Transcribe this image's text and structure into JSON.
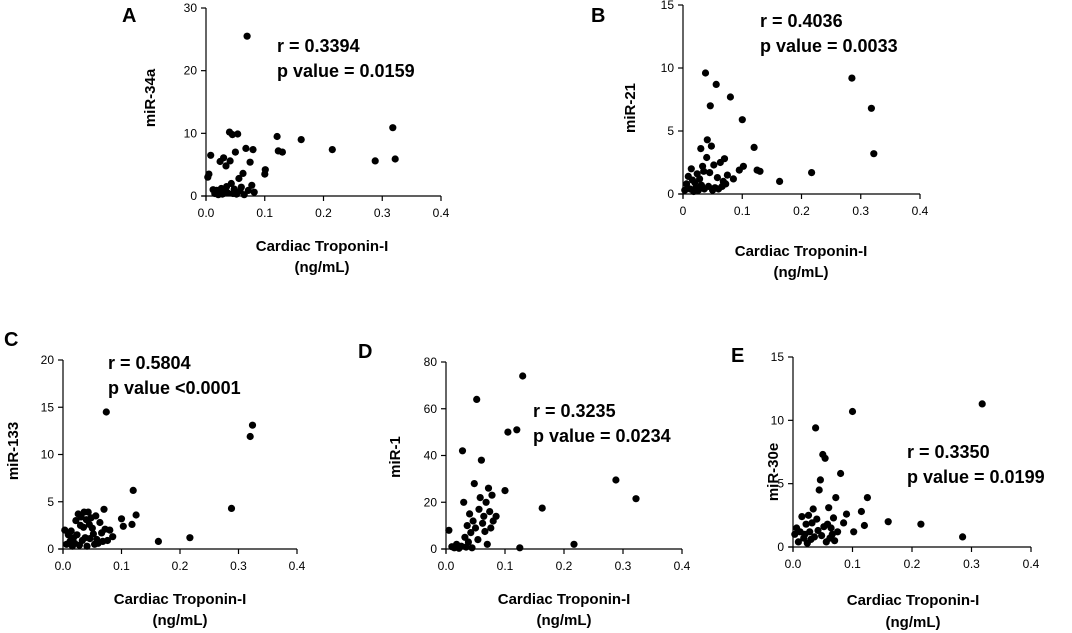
{
  "figure": {
    "background": "#ffffff",
    "point_color": "#000000"
  },
  "chart_data": [
    {
      "panel": "A",
      "type": "scatter",
      "xlabel": [
        "Cardiac Troponin-I",
        "(ng/mL)"
      ],
      "ylabel": "miR-34a",
      "xlim": [
        0,
        0.4
      ],
      "ylim": [
        0,
        30
      ],
      "xticks": [
        "0.0",
        "0.1",
        "0.2",
        "0.3",
        "0.4"
      ],
      "yticks": [
        "0",
        "10",
        "20",
        "30"
      ],
      "annotation": [
        "r = 0.3394",
        "p value = 0.0159"
      ],
      "points": [
        [
          0.003,
          3.0
        ],
        [
          0.005,
          3.5
        ],
        [
          0.008,
          6.5
        ],
        [
          0.012,
          1.0
        ],
        [
          0.015,
          0.4
        ],
        [
          0.018,
          0.9
        ],
        [
          0.021,
          0.2
        ],
        [
          0.024,
          5.5
        ],
        [
          0.026,
          1.2
        ],
        [
          0.028,
          0.3
        ],
        [
          0.03,
          6.1
        ],
        [
          0.032,
          0.8
        ],
        [
          0.034,
          4.8
        ],
        [
          0.035,
          1.5
        ],
        [
          0.037,
          0.5
        ],
        [
          0.04,
          10.2
        ],
        [
          0.041,
          5.6
        ],
        [
          0.043,
          2.0
        ],
        [
          0.045,
          9.8
        ],
        [
          0.046,
          0.4
        ],
        [
          0.048,
          1.1
        ],
        [
          0.05,
          7.0
        ],
        [
          0.052,
          0.3
        ],
        [
          0.054,
          9.9
        ],
        [
          0.056,
          2.8
        ],
        [
          0.058,
          0.8
        ],
        [
          0.06,
          1.4
        ],
        [
          0.063,
          3.6
        ],
        [
          0.065,
          0.2
        ],
        [
          0.068,
          7.6
        ],
        [
          0.07,
          25.5
        ],
        [
          0.072,
          0.9
        ],
        [
          0.075,
          5.4
        ],
        [
          0.078,
          1.7
        ],
        [
          0.08,
          7.4
        ],
        [
          0.082,
          0.6
        ],
        [
          0.1,
          3.5
        ],
        [
          0.101,
          4.2
        ],
        [
          0.121,
          9.5
        ],
        [
          0.123,
          7.2
        ],
        [
          0.13,
          7.0
        ],
        [
          0.162,
          9.0
        ],
        [
          0.215,
          7.4
        ],
        [
          0.288,
          5.6
        ],
        [
          0.318,
          10.9
        ],
        [
          0.322,
          5.9
        ]
      ]
    },
    {
      "panel": "B",
      "type": "scatter",
      "xlabel": [
        "Cardiac Troponin-I",
        "(ng/mL)"
      ],
      "ylabel": "miR-21",
      "xlim": [
        0,
        0.4
      ],
      "ylim": [
        0,
        15
      ],
      "xticks": [
        "0",
        "0.1",
        "0.2",
        "0.3",
        "0.4"
      ],
      "yticks": [
        "0",
        "5",
        "10",
        "15"
      ],
      "annotation": [
        "r = 0.4036",
        "p value = 0.0033"
      ],
      "points": [
        [
          0.003,
          0.3
        ],
        [
          0.006,
          0.8
        ],
        [
          0.009,
          1.4
        ],
        [
          0.012,
          0.4
        ],
        [
          0.014,
          2.0
        ],
        [
          0.016,
          1.1
        ],
        [
          0.018,
          0.2
        ],
        [
          0.02,
          0.9
        ],
        [
          0.022,
          0.5
        ],
        [
          0.024,
          1.6
        ],
        [
          0.026,
          0.3
        ],
        [
          0.028,
          1.2
        ],
        [
          0.03,
          3.6
        ],
        [
          0.031,
          0.7
        ],
        [
          0.033,
          2.2
        ],
        [
          0.035,
          1.8
        ],
        [
          0.036,
          0.4
        ],
        [
          0.038,
          9.6
        ],
        [
          0.04,
          2.9
        ],
        [
          0.041,
          4.3
        ],
        [
          0.043,
          0.6
        ],
        [
          0.045,
          1.7
        ],
        [
          0.046,
          7.0
        ],
        [
          0.048,
          3.8
        ],
        [
          0.05,
          0.3
        ],
        [
          0.052,
          2.3
        ],
        [
          0.054,
          0.5
        ],
        [
          0.056,
          8.7
        ],
        [
          0.058,
          1.3
        ],
        [
          0.06,
          0.4
        ],
        [
          0.063,
          2.5
        ],
        [
          0.066,
          0.6
        ],
        [
          0.068,
          1.0
        ],
        [
          0.07,
          2.8
        ],
        [
          0.072,
          0.8
        ],
        [
          0.075,
          1.5
        ],
        [
          0.08,
          7.7
        ],
        [
          0.085,
          1.2
        ],
        [
          0.095,
          1.9
        ],
        [
          0.1,
          5.9
        ],
        [
          0.102,
          2.2
        ],
        [
          0.12,
          3.7
        ],
        [
          0.125,
          1.9
        ],
        [
          0.13,
          1.8
        ],
        [
          0.163,
          1.0
        ],
        [
          0.217,
          1.7
        ],
        [
          0.285,
          9.2
        ],
        [
          0.318,
          6.8
        ],
        [
          0.322,
          3.2
        ]
      ]
    },
    {
      "panel": "C",
      "type": "scatter",
      "xlabel": [
        "Cardiac Troponin-I",
        "(ng/mL)"
      ],
      "ylabel": "miR-133",
      "xlim": [
        0,
        0.4
      ],
      "ylim": [
        0,
        20
      ],
      "xticks": [
        "0.0",
        "0.1",
        "0.2",
        "0.3",
        "0.4"
      ],
      "yticks": [
        "0",
        "5",
        "10",
        "15",
        "20"
      ],
      "annotation": [
        "r = 0.5804",
        "p value <0.0001"
      ],
      "points": [
        [
          0.003,
          2.0
        ],
        [
          0.006,
          0.5
        ],
        [
          0.009,
          1.5
        ],
        [
          0.012,
          0.8
        ],
        [
          0.014,
          1.9
        ],
        [
          0.016,
          0.3
        ],
        [
          0.018,
          1.2
        ],
        [
          0.02,
          0.6
        ],
        [
          0.022,
          3.0
        ],
        [
          0.024,
          1.5
        ],
        [
          0.026,
          3.7
        ],
        [
          0.028,
          0.4
        ],
        [
          0.03,
          2.5
        ],
        [
          0.031,
          3.4
        ],
        [
          0.033,
          0.9
        ],
        [
          0.035,
          2.3
        ],
        [
          0.036,
          3.9
        ],
        [
          0.038,
          1.2
        ],
        [
          0.04,
          3.1
        ],
        [
          0.041,
          0.3
        ],
        [
          0.043,
          3.9
        ],
        [
          0.045,
          2.6
        ],
        [
          0.046,
          1.1
        ],
        [
          0.048,
          3.3
        ],
        [
          0.05,
          2.2
        ],
        [
          0.052,
          1.6
        ],
        [
          0.054,
          0.5
        ],
        [
          0.056,
          3.5
        ],
        [
          0.058,
          1.0
        ],
        [
          0.06,
          0.6
        ],
        [
          0.063,
          2.8
        ],
        [
          0.066,
          1.7
        ],
        [
          0.068,
          0.8
        ],
        [
          0.07,
          4.2
        ],
        [
          0.072,
          2.1
        ],
        [
          0.074,
          14.5
        ],
        [
          0.076,
          0.9
        ],
        [
          0.08,
          2.0
        ],
        [
          0.085,
          1.3
        ],
        [
          0.1,
          3.2
        ],
        [
          0.103,
          2.4
        ],
        [
          0.118,
          2.6
        ],
        [
          0.12,
          6.2
        ],
        [
          0.125,
          3.6
        ],
        [
          0.163,
          0.8
        ],
        [
          0.217,
          1.2
        ],
        [
          0.288,
          4.3
        ],
        [
          0.32,
          11.9
        ],
        [
          0.324,
          13.1
        ]
      ]
    },
    {
      "panel": "D",
      "type": "scatter",
      "xlabel": [
        "Cardiac Troponin-I",
        "(ng/mL)"
      ],
      "ylabel": "miR-1",
      "xlim": [
        0,
        0.4
      ],
      "ylim": [
        0,
        80
      ],
      "xticks": [
        "0.0",
        "0.1",
        "0.2",
        "0.3",
        "0.4"
      ],
      "yticks": [
        "0",
        "20",
        "40",
        "60",
        "80"
      ],
      "annotation": [
        "r = 0.3235",
        "p value = 0.0234"
      ],
      "points": [
        [
          0.005,
          8.0
        ],
        [
          0.01,
          1.0
        ],
        [
          0.014,
          0.5
        ],
        [
          0.018,
          2.0
        ],
        [
          0.022,
          0.3
        ],
        [
          0.026,
          1.2
        ],
        [
          0.028,
          42.0
        ],
        [
          0.03,
          20.0
        ],
        [
          0.032,
          5.0
        ],
        [
          0.034,
          0.8
        ],
        [
          0.036,
          10.0
        ],
        [
          0.038,
          3.0
        ],
        [
          0.04,
          15.0
        ],
        [
          0.042,
          7.0
        ],
        [
          0.044,
          0.5
        ],
        [
          0.046,
          12.0
        ],
        [
          0.048,
          28.0
        ],
        [
          0.05,
          9.0
        ],
        [
          0.052,
          64.0
        ],
        [
          0.054,
          4.0
        ],
        [
          0.056,
          17.0
        ],
        [
          0.058,
          22.0
        ],
        [
          0.06,
          38.0
        ],
        [
          0.062,
          11.0
        ],
        [
          0.064,
          14.0
        ],
        [
          0.066,
          7.5
        ],
        [
          0.068,
          20.0
        ],
        [
          0.07,
          2.0
        ],
        [
          0.072,
          26.0
        ],
        [
          0.074,
          16.0
        ],
        [
          0.076,
          9.0
        ],
        [
          0.078,
          23.0
        ],
        [
          0.08,
          12.0
        ],
        [
          0.085,
          14.0
        ],
        [
          0.1,
          25.0
        ],
        [
          0.105,
          50.0
        ],
        [
          0.12,
          51.0
        ],
        [
          0.125,
          0.5
        ],
        [
          0.13,
          74.0
        ],
        [
          0.163,
          17.5
        ],
        [
          0.217,
          2.0
        ],
        [
          0.288,
          29.5
        ],
        [
          0.322,
          21.5
        ]
      ]
    },
    {
      "panel": "E",
      "type": "scatter",
      "xlabel": [
        "Cardiac Troponin-I",
        "(ng/mL)"
      ],
      "ylabel": "miR-30e",
      "xlim": [
        0,
        0.4
      ],
      "ylim": [
        0,
        15
      ],
      "xticks": [
        "0.0",
        "0.1",
        "0.2",
        "0.3",
        "0.4"
      ],
      "yticks": [
        "0",
        "5",
        "10",
        "15"
      ],
      "annotation": [
        "r = 0.3350",
        "p value = 0.0199"
      ],
      "points": [
        [
          0.003,
          1.0
        ],
        [
          0.006,
          1.5
        ],
        [
          0.009,
          0.4
        ],
        [
          0.012,
          1.2
        ],
        [
          0.015,
          2.4
        ],
        [
          0.018,
          0.7
        ],
        [
          0.02,
          1.0
        ],
        [
          0.022,
          1.8
        ],
        [
          0.024,
          0.3
        ],
        [
          0.026,
          2.5
        ],
        [
          0.028,
          1.2
        ],
        [
          0.03,
          0.6
        ],
        [
          0.032,
          1.9
        ],
        [
          0.034,
          3.0
        ],
        [
          0.036,
          0.8
        ],
        [
          0.038,
          9.4
        ],
        [
          0.04,
          2.2
        ],
        [
          0.042,
          1.3
        ],
        [
          0.044,
          4.5
        ],
        [
          0.046,
          5.3
        ],
        [
          0.048,
          0.9
        ],
        [
          0.05,
          7.3
        ],
        [
          0.052,
          1.6
        ],
        [
          0.054,
          7.0
        ],
        [
          0.056,
          0.4
        ],
        [
          0.058,
          1.8
        ],
        [
          0.06,
          3.1
        ],
        [
          0.062,
          0.7
        ],
        [
          0.064,
          1.5
        ],
        [
          0.066,
          1.0
        ],
        [
          0.068,
          2.3
        ],
        [
          0.07,
          0.5
        ],
        [
          0.072,
          3.9
        ],
        [
          0.075,
          1.2
        ],
        [
          0.08,
          5.8
        ],
        [
          0.085,
          1.9
        ],
        [
          0.09,
          2.6
        ],
        [
          0.1,
          10.7
        ],
        [
          0.102,
          1.2
        ],
        [
          0.115,
          2.8
        ],
        [
          0.12,
          1.7
        ],
        [
          0.125,
          3.9
        ],
        [
          0.16,
          2.0
        ],
        [
          0.215,
          1.8
        ],
        [
          0.285,
          0.8
        ],
        [
          0.318,
          11.3
        ]
      ]
    }
  ]
}
